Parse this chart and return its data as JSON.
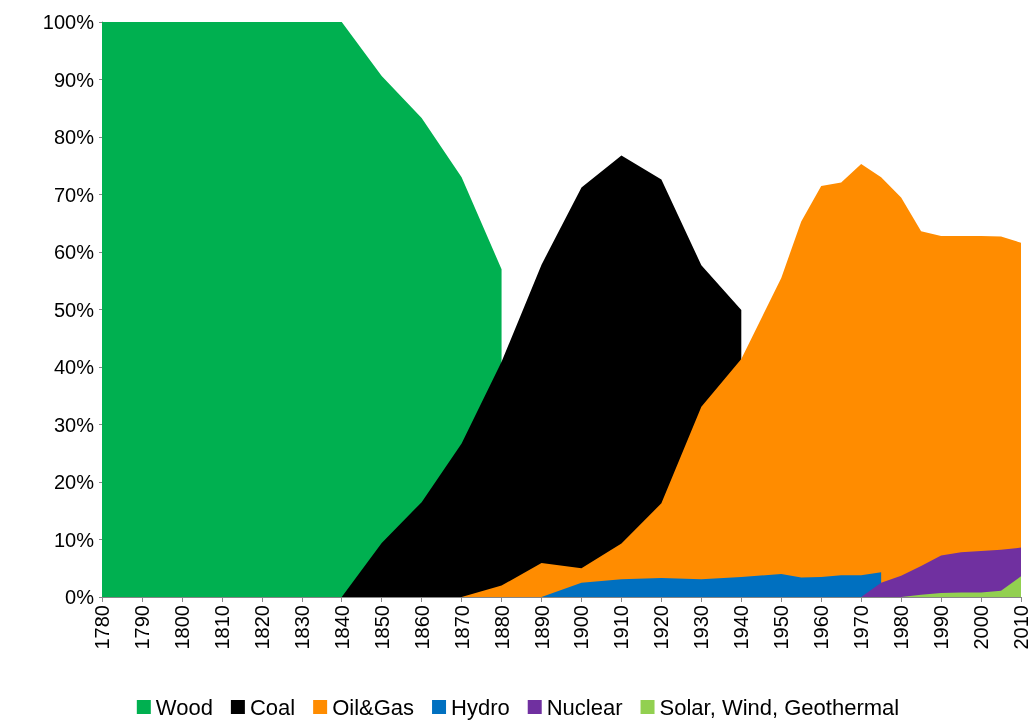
{
  "chart_data": {
    "type": "area",
    "x": [
      1780,
      1790,
      1800,
      1810,
      1820,
      1830,
      1840,
      1850,
      1860,
      1870,
      1880,
      1890,
      1900,
      1910,
      1920,
      1930,
      1940,
      1950,
      1955,
      1960,
      1965,
      1970,
      1975,
      1980,
      1985,
      1990,
      1995,
      2000,
      2005,
      2010
    ],
    "series": [
      {
        "name": "Wood",
        "color": "#00b050",
        "values": [
          100,
          100,
          100,
          100,
          100,
          100,
          100,
          90.6,
          83.3,
          73,
          57,
          null,
          null,
          null,
          null,
          null,
          null,
          null,
          null,
          null,
          null,
          null,
          null,
          null,
          null,
          null,
          null,
          null,
          null,
          null
        ]
      },
      {
        "name": "Coal",
        "color": "#000000",
        "values": [
          null,
          null,
          null,
          null,
          null,
          null,
          0,
          9.4,
          16.5,
          26.7,
          40.9,
          57.8,
          71.2,
          76.8,
          72.6,
          57.7,
          49.9,
          null,
          null,
          null,
          null,
          null,
          null,
          null,
          null,
          null,
          null,
          null,
          null,
          null
        ]
      },
      {
        "name": "Oil&Gas",
        "color": "#ff8c00",
        "values": [
          null,
          null,
          null,
          null,
          null,
          null,
          null,
          null,
          null,
          0,
          2.0,
          5.9,
          5.0,
          9.3,
          16.3,
          33.1,
          41.4,
          55.5,
          65.3,
          71.5,
          72.1,
          75.3,
          73.0,
          69.5,
          63.6,
          62.8,
          62.8,
          62.8,
          62.7,
          61.6
        ]
      },
      {
        "name": "Hydro",
        "color": "#0070c0",
        "values": [
          null,
          null,
          null,
          null,
          null,
          null,
          null,
          null,
          null,
          null,
          null,
          0,
          2.5,
          3.1,
          3.3,
          3.1,
          3.5,
          4.0,
          3.4,
          3.5,
          3.8,
          3.8,
          4.3,
          null,
          null,
          null,
          null,
          null,
          null,
          null
        ]
      },
      {
        "name": "Nuclear",
        "color": "#7030a0",
        "values": [
          null,
          null,
          null,
          null,
          null,
          null,
          null,
          null,
          null,
          null,
          null,
          null,
          null,
          null,
          null,
          null,
          null,
          null,
          null,
          null,
          null,
          0,
          2.5,
          3.7,
          5.4,
          7.2,
          7.8,
          8.0,
          8.2,
          8.6
        ]
      },
      {
        "name": "Solar, Wind, Geothermal",
        "color": "#92d050",
        "values": [
          null,
          null,
          null,
          null,
          null,
          null,
          null,
          null,
          null,
          null,
          null,
          null,
          null,
          null,
          null,
          null,
          null,
          null,
          null,
          null,
          null,
          null,
          null,
          0,
          0.4,
          0.7,
          0.8,
          0.8,
          1.1,
          3.6
        ]
      }
    ],
    "xlim": [
      1780,
      2010
    ],
    "xticks": [
      1780,
      1790,
      1800,
      1810,
      1820,
      1830,
      1840,
      1850,
      1860,
      1870,
      1880,
      1890,
      1900,
      1910,
      1920,
      1930,
      1940,
      1950,
      1960,
      1970,
      1980,
      1990,
      2000,
      2010
    ],
    "ylim": [
      0,
      100
    ],
    "yticks": [
      {
        "value": 0,
        "label": "0%"
      },
      {
        "value": 10,
        "label": "10%"
      },
      {
        "value": 20,
        "label": "20%"
      },
      {
        "value": 30,
        "label": "30%"
      },
      {
        "value": 40,
        "label": "40%"
      },
      {
        "value": 50,
        "label": "50%"
      },
      {
        "value": 60,
        "label": "60%"
      },
      {
        "value": 70,
        "label": "70%"
      },
      {
        "value": 80,
        "label": "80%"
      },
      {
        "value": 90,
        "label": "90%"
      },
      {
        "value": 100,
        "label": "100%"
      }
    ],
    "legend": "bottom",
    "marker": "none",
    "grid": false
  }
}
